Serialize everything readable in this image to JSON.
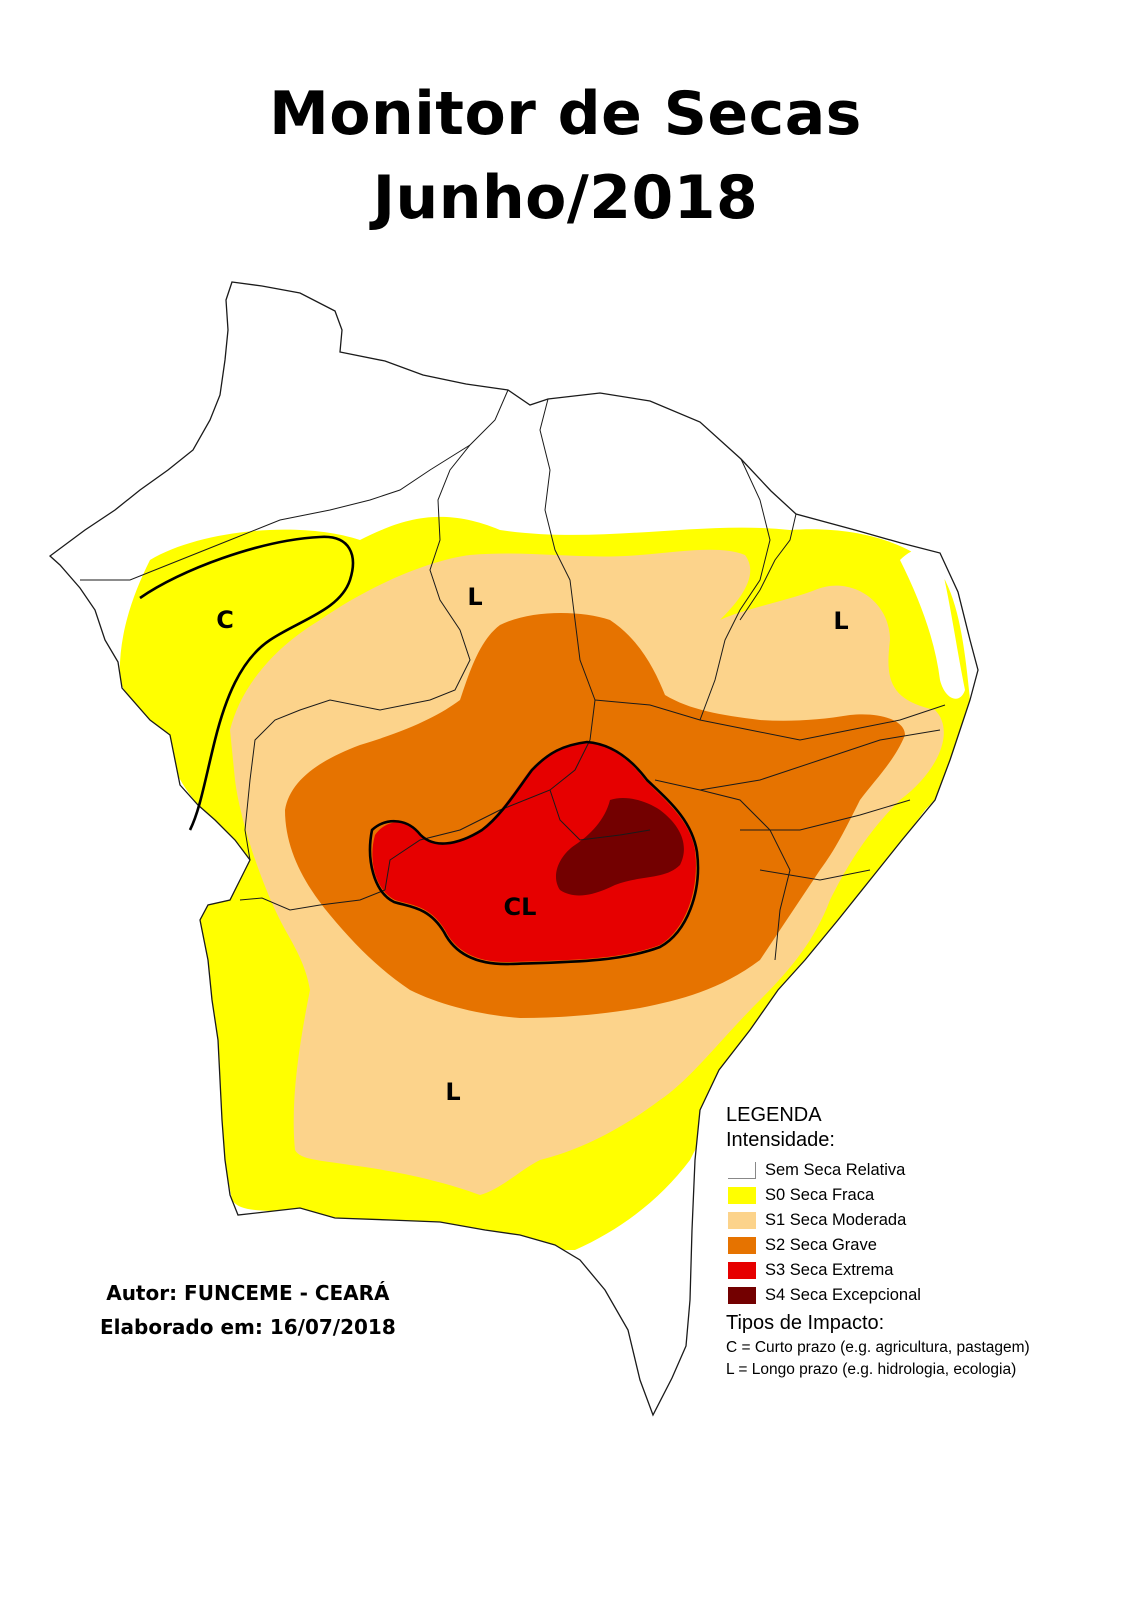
{
  "title": {
    "line1": "Monitor de Secas",
    "line2": "Junho/2018"
  },
  "map": {
    "labels": {
      "c_west": "C",
      "l_north": "L",
      "l_east": "L",
      "cl_center": "CL",
      "l_south": "L"
    },
    "colors": {
      "none": "#ffffff",
      "s0": "#ffff00",
      "s1": "#fcd38b",
      "s2": "#e67300",
      "s3": "#e60000",
      "s4": "#730000",
      "border": "#1a1a1a"
    }
  },
  "legend": {
    "title": "LEGENDA",
    "intensity_title": "Intensidade:",
    "items": [
      {
        "label": "Sem Seca Relativa",
        "color": "#ffffff"
      },
      {
        "label": "S0 Seca Fraca",
        "color": "#ffff00"
      },
      {
        "label": "S1 Seca Moderada",
        "color": "#fcd38b"
      },
      {
        "label": "S2 Seca Grave",
        "color": "#e67300"
      },
      {
        "label": "S3 Seca Extrema",
        "color": "#e60000"
      },
      {
        "label": "S4 Seca Excepcional",
        "color": "#730000"
      }
    ],
    "impact_title": "Tipos de Impacto:",
    "impact_short": "C = Curto prazo (e.g. agricultura, pastagem)",
    "impact_long": "L = Longo prazo (e.g. hidrologia, ecologia)"
  },
  "credits": {
    "author": "Autor: FUNCEME - CEARÁ",
    "date": "Elaborado em: 16/07/2018"
  }
}
